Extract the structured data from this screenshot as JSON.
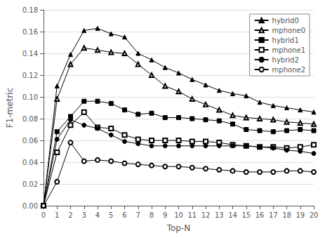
{
  "chart_data": {
    "type": "line",
    "xlabel": "Top-N",
    "ylabel": "F1-metric",
    "x": [
      0,
      1,
      2,
      3,
      4,
      5,
      6,
      7,
      8,
      9,
      10,
      11,
      12,
      13,
      14,
      15,
      16,
      17,
      18,
      19,
      20
    ],
    "series": [
      {
        "name": "hybrid0",
        "color": "#000000",
        "marker": "triangle",
        "values": [
          0,
          0.11,
          0.139,
          0.161,
          0.163,
          0.158,
          0.155,
          0.14,
          0.134,
          0.127,
          0.122,
          0.116,
          0.111,
          0.106,
          0.103,
          0.101,
          0.095,
          0.092,
          0.09,
          0.088,
          0.086
        ]
      },
      {
        "name": "mphone0",
        "color": "#000000",
        "marker": "triangle-open",
        "values": [
          0,
          0.098,
          0.13,
          0.145,
          0.143,
          0.141,
          0.14,
          0.13,
          0.12,
          0.11,
          0.105,
          0.098,
          0.093,
          0.088,
          0.083,
          0.081,
          0.08,
          0.079,
          0.077,
          0.076,
          0.075
        ]
      },
      {
        "name": "hybrid1",
        "color": "#000000",
        "marker": "square",
        "values": [
          0,
          0.068,
          0.082,
          0.096,
          0.096,
          0.094,
          0.088,
          0.084,
          0.085,
          0.081,
          0.081,
          0.08,
          0.079,
          0.078,
          0.075,
          0.07,
          0.069,
          0.068,
          0.069,
          0.07,
          0.069
        ]
      },
      {
        "name": "mphone1",
        "color": "#000000",
        "marker": "square-open",
        "values": [
          0,
          0.049,
          0.074,
          0.086,
          0.072,
          0.071,
          0.065,
          0.061,
          0.06,
          0.06,
          0.06,
          0.059,
          0.059,
          0.058,
          0.056,
          0.055,
          0.054,
          0.054,
          0.053,
          0.054,
          0.056
        ]
      },
      {
        "name": "hybrid2",
        "color": "#000000",
        "marker": "circle",
        "values": [
          0,
          0.061,
          0.079,
          0.074,
          0.071,
          0.065,
          0.059,
          0.057,
          0.055,
          0.055,
          0.055,
          0.055,
          0.055,
          0.055,
          0.055,
          0.055,
          0.054,
          0.053,
          0.051,
          0.05,
          0.048
        ]
      },
      {
        "name": "mphone2",
        "color": "#000000",
        "marker": "circle-open",
        "values": [
          0,
          0.022,
          0.058,
          0.041,
          0.042,
          0.041,
          0.039,
          0.038,
          0.037,
          0.036,
          0.036,
          0.035,
          0.034,
          0.033,
          0.032,
          0.031,
          0.031,
          0.031,
          0.032,
          0.032,
          0.031
        ]
      }
    ],
    "xlim": [
      0,
      20
    ],
    "ylim": [
      0,
      0.18
    ],
    "xticks": [
      0,
      1,
      2,
      3,
      4,
      5,
      6,
      7,
      8,
      9,
      10,
      11,
      12,
      13,
      14,
      15,
      16,
      17,
      18,
      19,
      20
    ],
    "yticks": [
      {
        "value": 0,
        "label": "0.00"
      },
      {
        "value": 0.02,
        "label": "0.02"
      },
      {
        "value": 0.04,
        "label": "0.04"
      },
      {
        "value": 0.06,
        "label": "0.06"
      },
      {
        "value": 0.08,
        "label": "0.08"
      },
      {
        "value": 0.1,
        "label": "0.10"
      },
      {
        "value": 0.12,
        "label": "0.12"
      },
      {
        "value": 0.14,
        "label": "0.14"
      },
      {
        "value": 0.16,
        "label": "0.16"
      },
      {
        "value": 0.18,
        "label": "0.18"
      }
    ],
    "grid": "y",
    "legend": "upper right"
  }
}
